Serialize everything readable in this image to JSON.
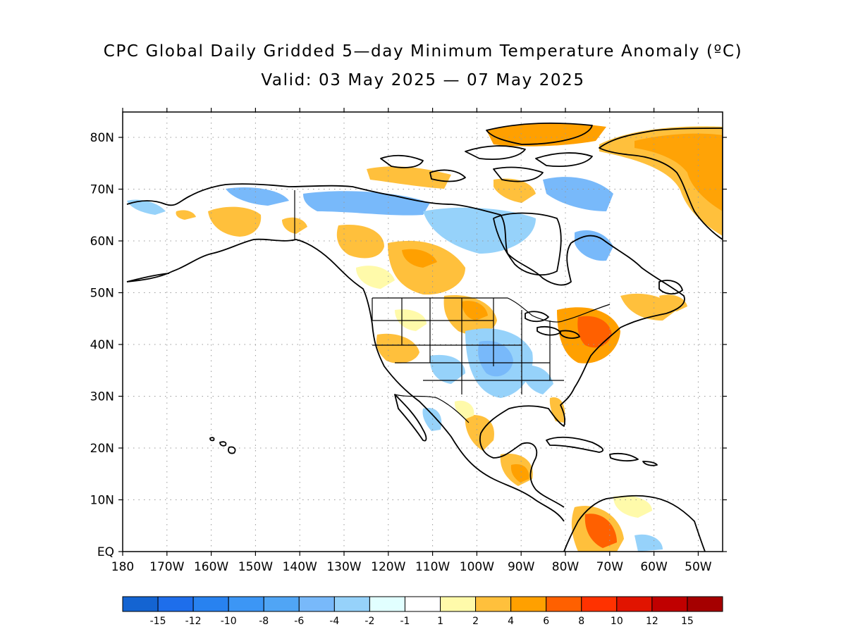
{
  "title": "CPC Global Daily Gridded 5—day Minimum Temperature Anomaly (ºC)",
  "subtitle": "Valid: 03 May 2025 — 07 May 2025",
  "lat_labels": [
    "80N",
    "70N",
    "60N",
    "50N",
    "40N",
    "30N",
    "20N",
    "10N",
    "EQ"
  ],
  "lon_labels": [
    "180",
    "170W",
    "160W",
    "150W",
    "140W",
    "130W",
    "120W",
    "110W",
    "100W",
    "90W",
    "80W",
    "70W",
    "60W",
    "50W"
  ],
  "colorbar": {
    "colors": [
      "#1464d2",
      "#1e6eeb",
      "#2882f0",
      "#3c96f5",
      "#50a5f5",
      "#78b9fa",
      "#96d2fa",
      "#e1ffff",
      "#ffffff",
      "#fffaaa",
      "#ffc03c",
      "#ffa000",
      "#ff6000",
      "#ff3200",
      "#e11400",
      "#c00000",
      "#a50000"
    ],
    "labels": [
      "-15",
      "-12",
      "-10",
      "-8",
      "-6",
      "-4",
      "-2",
      "-1",
      "1",
      "2",
      "4",
      "6",
      "8",
      "10",
      "12",
      "15"
    ]
  }
}
